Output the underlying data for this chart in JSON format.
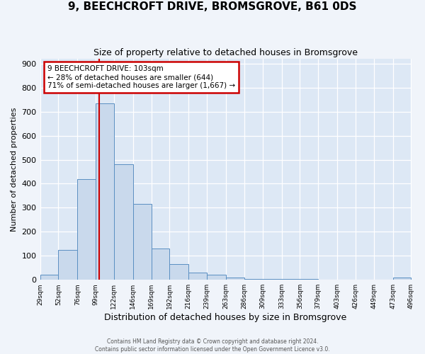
{
  "title": "9, BEECHCROFT DRIVE, BROMSGROVE, B61 0DS",
  "subtitle": "Size of property relative to detached houses in Bromsgrove",
  "xlabel": "Distribution of detached houses by size in Bromsgrove",
  "ylabel": "Number of detached properties",
  "bar_color": "#c9d9ec",
  "bar_edge_color": "#5a8fc2",
  "background_color": "#dde8f5",
  "grid_color": "#ffffff",
  "fig_background": "#f0f4fa",
  "red_line_x": 103,
  "annotation_text": "9 BEECHCROFT DRIVE: 103sqm\n← 28% of detached houses are smaller (644)\n71% of semi-detached houses are larger (1,667) →",
  "annotation_box_color": "#ffffff",
  "annotation_box_edge_color": "#cc0000",
  "footer": "Contains HM Land Registry data © Crown copyright and database right 2024.\nContains public sector information licensed under the Open Government Licence v3.0.",
  "bin_edges": [
    29,
    52,
    76,
    99,
    122,
    146,
    169,
    192,
    216,
    239,
    263,
    286,
    309,
    333,
    356,
    379,
    403,
    426,
    449,
    473,
    496
  ],
  "bar_heights": [
    20,
    125,
    420,
    735,
    480,
    315,
    130,
    65,
    30,
    20,
    10,
    5,
    5,
    5,
    5,
    0,
    0,
    0,
    0,
    10
  ],
  "ylim": [
    0,
    920
  ],
  "yticks": [
    0,
    100,
    200,
    300,
    400,
    500,
    600,
    700,
    800,
    900
  ],
  "title_fontsize": 11,
  "subtitle_fontsize": 9,
  "xlabel_fontsize": 9,
  "ylabel_fontsize": 8,
  "xtick_fontsize": 6.5,
  "ytick_fontsize": 8,
  "annotation_fontsize": 7.5,
  "footer_fontsize": 5.5
}
